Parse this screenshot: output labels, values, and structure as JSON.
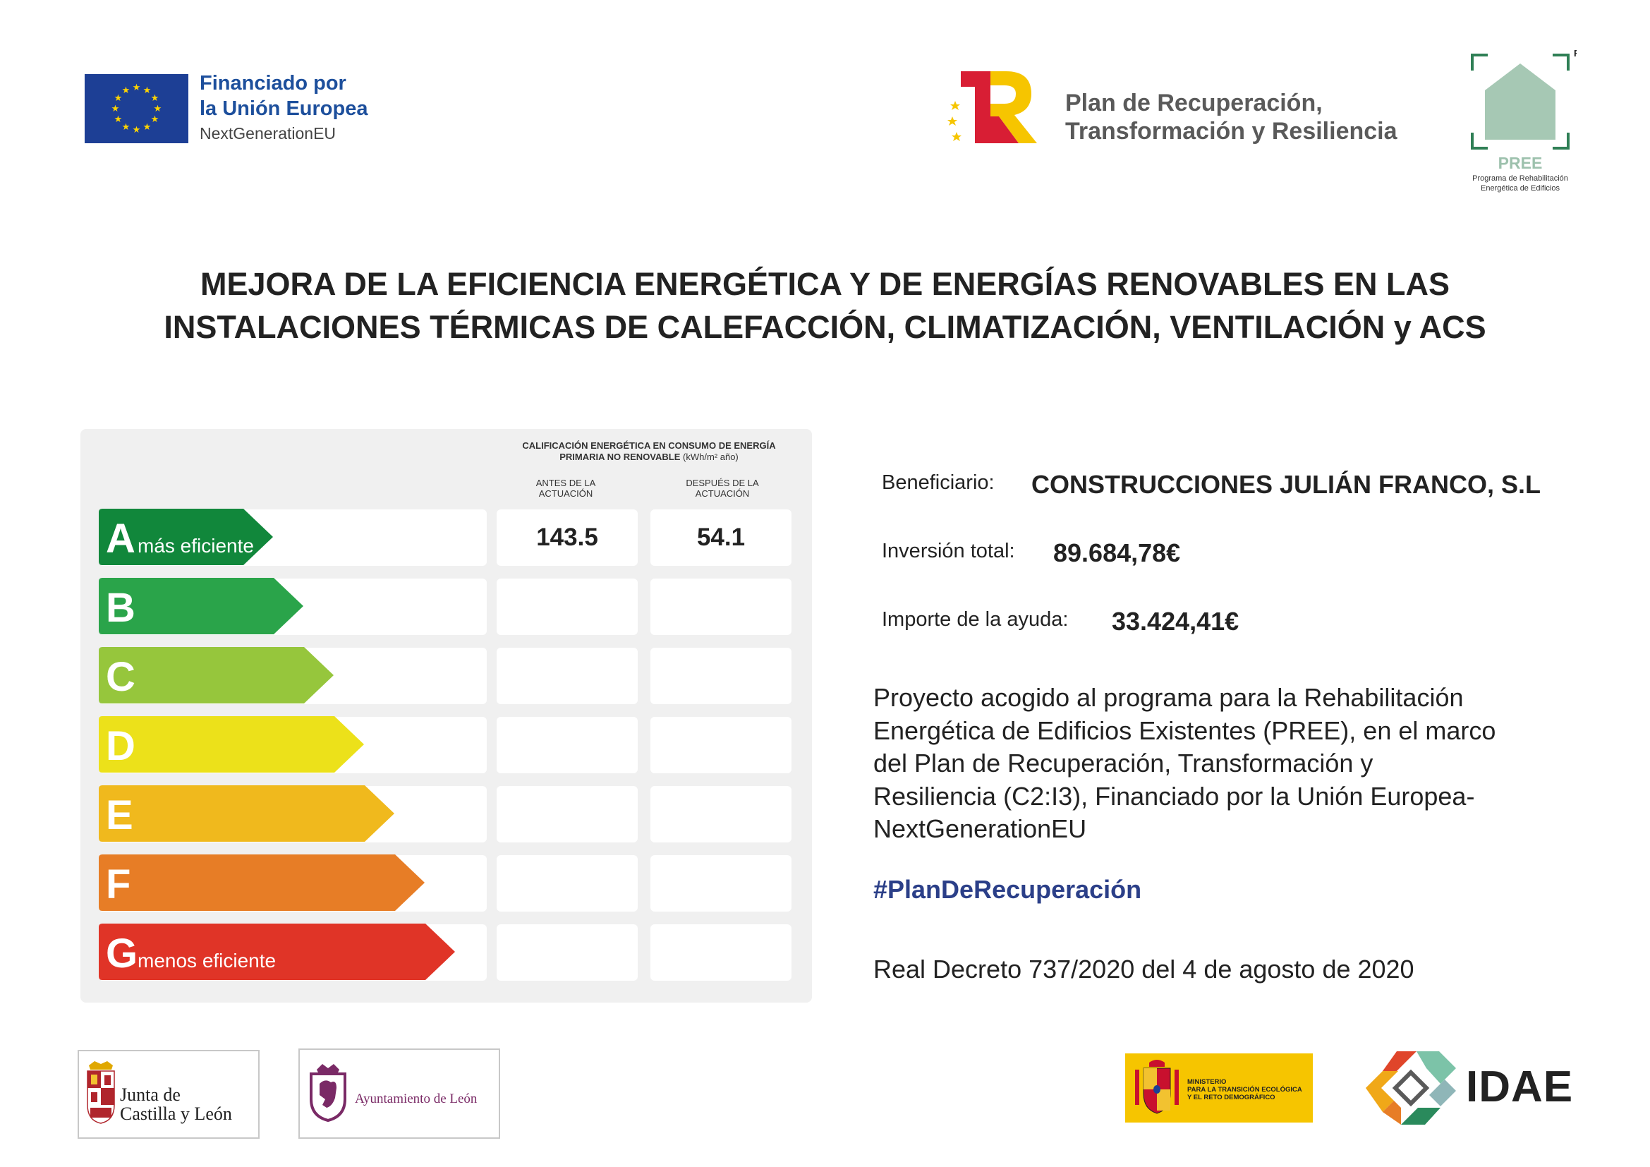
{
  "header": {
    "eu": {
      "line1": "Financiado por",
      "line2": "la Unión Europea",
      "line3": "NextGenerationEU",
      "flag_color": "#1d3f95",
      "star_color": "#ffd500"
    },
    "prtr": {
      "line1": "Plan de Recuperación,",
      "line2": "Transformación y Resiliencia"
    },
    "pree": {
      "label": "PREE",
      "registered": "R",
      "sub1": "Programa de Rehabilitación",
      "sub2": "Energética de Edificios"
    }
  },
  "title": {
    "line1": "MEJORA DE LA EFICIENCIA ENERGÉTICA Y DE ENERGÍAS RENOVABLES EN LAS",
    "line2": "INSTALACIONES TÉRMICAS DE CALEFACCIÓN, CLIMATIZACIÓN, VENTILACIÓN y ACS"
  },
  "energy_label": {
    "header_line1": "CALIFICACIÓN ENERGÉTICA EN CONSUMO DE ENERGÍA",
    "header_line2": "PRIMARIA NO RENOVABLE",
    "header_unit": "(kWh/m² año)",
    "col_before_1": "ANTES DE LA",
    "col_before_2": "ACTUACIÓN",
    "col_after_1": "DESPUÉS DE LA",
    "col_after_2": "ACTUACIÓN",
    "classes": [
      {
        "letter": "A",
        "desc": "más eficiente",
        "color": "#11873b",
        "before": "143.5",
        "after": "54.1"
      },
      {
        "letter": "B",
        "desc": "",
        "color": "#2aa44a",
        "before": "",
        "after": ""
      },
      {
        "letter": "C",
        "desc": "",
        "color": "#96c63c",
        "before": "",
        "after": ""
      },
      {
        "letter": "D",
        "desc": "",
        "color": "#ece11a",
        "before": "",
        "after": ""
      },
      {
        "letter": "E",
        "desc": "",
        "color": "#f0b91d",
        "before": "",
        "after": ""
      },
      {
        "letter": "F",
        "desc": "",
        "color": "#e77d26",
        "before": "",
        "after": ""
      },
      {
        "letter": "G",
        "desc": "menos eficiente",
        "color": "#e03427",
        "before": "",
        "after": ""
      }
    ]
  },
  "info": {
    "beneficiary_label": "Beneficiario:",
    "beneficiary_value": "CONSTRUCCIONES JULIÁN FRANCO, S.L",
    "investment_label": "Inversión total:",
    "investment_value": "89.684,78€",
    "aid_label": "Importe de la ayuda:",
    "aid_value": "33.424,41€",
    "project_lines": [
      "Proyecto acogido al programa para la Rehabilitación",
      "Energética de Edificios Existentes (PREE), en el marco",
      "del Plan de Recuperación, Transformación y",
      "Resiliencia (C2:I3), Financiado por la Unión Europea-",
      "NextGenerationEU"
    ],
    "hashtag": "#PlanDeRecuperación",
    "decree": "Real Decreto 737/2020 del 4 de agosto de 2020"
  },
  "footer": {
    "jcyl_line1": "Junta de",
    "jcyl_line2": "Castilla y León",
    "leon": "Ayuntamiento de León",
    "ministry_line1": "MINISTERIO",
    "ministry_line2": "PARA LA TRANSICIÓN ECOLÓGICA",
    "ministry_line3": "Y EL RETO DEMOGRÁFICO",
    "idae": "IDAE"
  }
}
